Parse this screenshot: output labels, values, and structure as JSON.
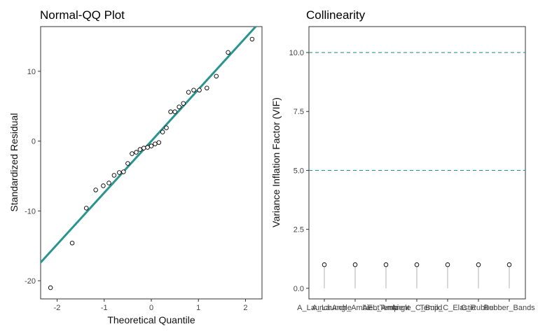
{
  "chart_data": [
    {
      "type": "scatter",
      "title": "Normal-QQ Plot",
      "xlabel": "Theoretical Quantile",
      "ylabel": "Standardized Residual",
      "xlim": [
        -2.35,
        2.35
      ],
      "ylim": [
        -22.6,
        16.4
      ],
      "x_ticks": [
        -2,
        -1,
        0,
        1,
        2
      ],
      "y_ticks": [
        -20,
        -10,
        0,
        10
      ],
      "grid": false,
      "line_color": "#2a9490",
      "reference_line": {
        "slope": 7.4,
        "intercept": 0.0
      },
      "points": [
        [
          -2.14,
          -21.0
        ],
        [
          -1.68,
          -14.6
        ],
        [
          -1.38,
          -9.6
        ],
        [
          -1.18,
          -7.0
        ],
        [
          -1.02,
          -6.4
        ],
        [
          -0.9,
          -6.0
        ],
        [
          -0.79,
          -4.9
        ],
        [
          -0.68,
          -4.5
        ],
        [
          -0.59,
          -4.4
        ],
        [
          -0.5,
          -3.2
        ],
        [
          -0.41,
          -1.8
        ],
        [
          -0.32,
          -1.6
        ],
        [
          -0.24,
          -1.2
        ],
        [
          -0.16,
          -1.0
        ],
        [
          -0.08,
          -0.9
        ],
        [
          0.0,
          -0.7
        ],
        [
          0.08,
          -0.4
        ],
        [
          0.16,
          -0.2
        ],
        [
          0.24,
          1.3
        ],
        [
          0.32,
          1.9
        ],
        [
          0.41,
          4.2
        ],
        [
          0.5,
          4.2
        ],
        [
          0.59,
          4.9
        ],
        [
          0.68,
          5.4
        ],
        [
          0.79,
          7.0
        ],
        [
          0.9,
          7.3
        ],
        [
          1.02,
          7.3
        ],
        [
          1.18,
          7.6
        ],
        [
          1.38,
          9.3
        ],
        [
          1.63,
          12.7
        ],
        [
          2.14,
          14.6
        ]
      ]
    },
    {
      "type": "lollipop",
      "title": "Collinearity",
      "xlabel": "",
      "ylabel": "Variance Inflation Factor (VIF)",
      "ylim": [
        -0.45,
        11.1
      ],
      "y_ticks": [
        0.0,
        2.5,
        5.0,
        7.5,
        10.0
      ],
      "y_tick_labels": [
        "0.0",
        "2.5",
        "5.0",
        "7.5",
        "10.0"
      ],
      "thresholds": [
        5.0,
        10.0
      ],
      "threshold_color": "#2a9490",
      "stem_color": "#bdbdbd",
      "categories": [
        "A_LaunchAngle",
        "A_Launch_AmbientTemp",
        "AEL_Ambient",
        "Angle_C_Build",
        "Temp_C_Elastic",
        "C_Rubber",
        "Rubber_Bands"
      ],
      "values": [
        1.0,
        1.0,
        1.0,
        1.0,
        1.0,
        1.0,
        1.0
      ]
    }
  ]
}
